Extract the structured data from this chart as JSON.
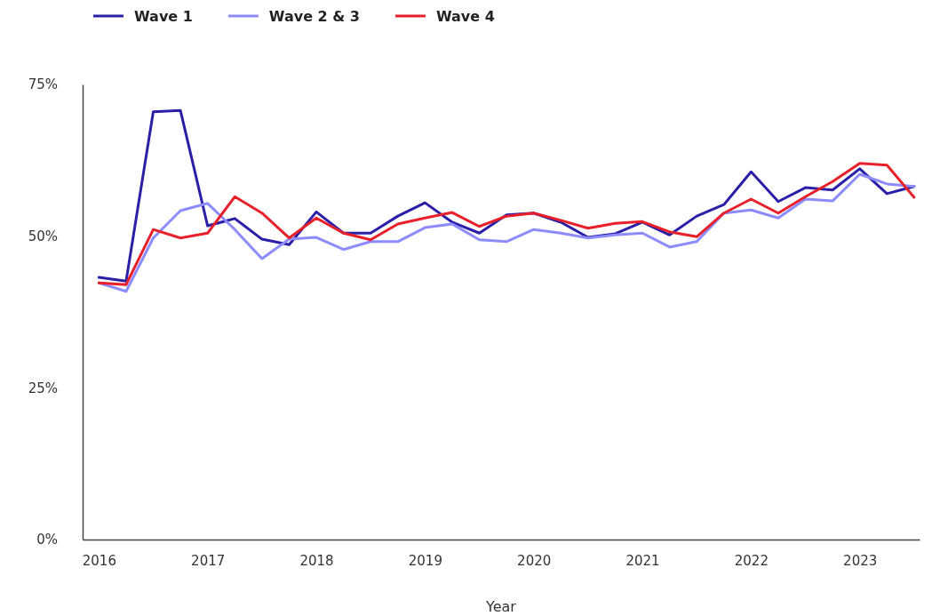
{
  "chart_data": {
    "type": "line",
    "xlabel": "Year",
    "xlim": [
      2015.85,
      2023.55
    ],
    "xticks": [
      2016,
      2017,
      2018,
      2019,
      2020,
      2021,
      2022,
      2023
    ],
    "ylim": [
      0,
      75
    ],
    "yticks": [
      {
        "value": 0,
        "label": "0%"
      },
      {
        "value": 25,
        "label": "25%"
      },
      {
        "value": 50,
        "label": "50%"
      },
      {
        "value": 75,
        "label": "75%"
      }
    ],
    "grid": false,
    "legend": "top left",
    "marker": "none",
    "x": [
      2016,
      2016.25,
      2016.5,
      2016.75,
      2017,
      2017.25,
      2017.5,
      2017.75,
      2018,
      2018.25,
      2018.5,
      2018.75,
      2019,
      2019.25,
      2019.5,
      2019.75,
      2020,
      2020.25,
      2020.5,
      2020.75,
      2021,
      2021.25,
      2021.5,
      2021.75,
      2022,
      2022.25,
      2022.5,
      2022.75,
      2023,
      2023.25,
      2023.5
    ],
    "series": [
      {
        "name": "Wave 1",
        "color": "#2b1fa8",
        "values": [
          43.2,
          42.6,
          70.5,
          70.7,
          51.7,
          52.9,
          49.5,
          48.6,
          54.0,
          50.5,
          50.5,
          53.3,
          55.5,
          52.3,
          50.5,
          53.5,
          53.8,
          52.3,
          49.8,
          50.4,
          52.3,
          50.2,
          53.3,
          55.2,
          60.6,
          55.7,
          58.0,
          57.6,
          61.1,
          57.0,
          58.2
        ]
      },
      {
        "name": "Wave 2 & 3",
        "color": "#8c8cff",
        "values": [
          42.3,
          40.9,
          49.7,
          54.2,
          55.4,
          51.1,
          46.3,
          49.5,
          49.8,
          47.8,
          49.1,
          49.1,
          51.4,
          52.0,
          49.4,
          49.1,
          51.1,
          50.5,
          49.7,
          50.2,
          50.5,
          48.2,
          49.1,
          53.8,
          54.3,
          53.0,
          56.1,
          55.8,
          60.2,
          58.6,
          58.2
        ]
      },
      {
        "name": "Wave 4",
        "color": "#e8202a",
        "values": [
          42.3,
          42.0,
          51.1,
          49.7,
          50.5,
          56.5,
          53.8,
          49.7,
          53.0,
          50.5,
          49.4,
          52.0,
          53.0,
          53.9,
          51.6,
          53.3,
          53.8,
          52.6,
          51.3,
          52.1,
          52.4,
          50.7,
          49.9,
          53.8,
          56.1,
          53.8,
          56.5,
          59.0,
          62.0,
          61.7,
          56.4
        ]
      }
    ]
  }
}
